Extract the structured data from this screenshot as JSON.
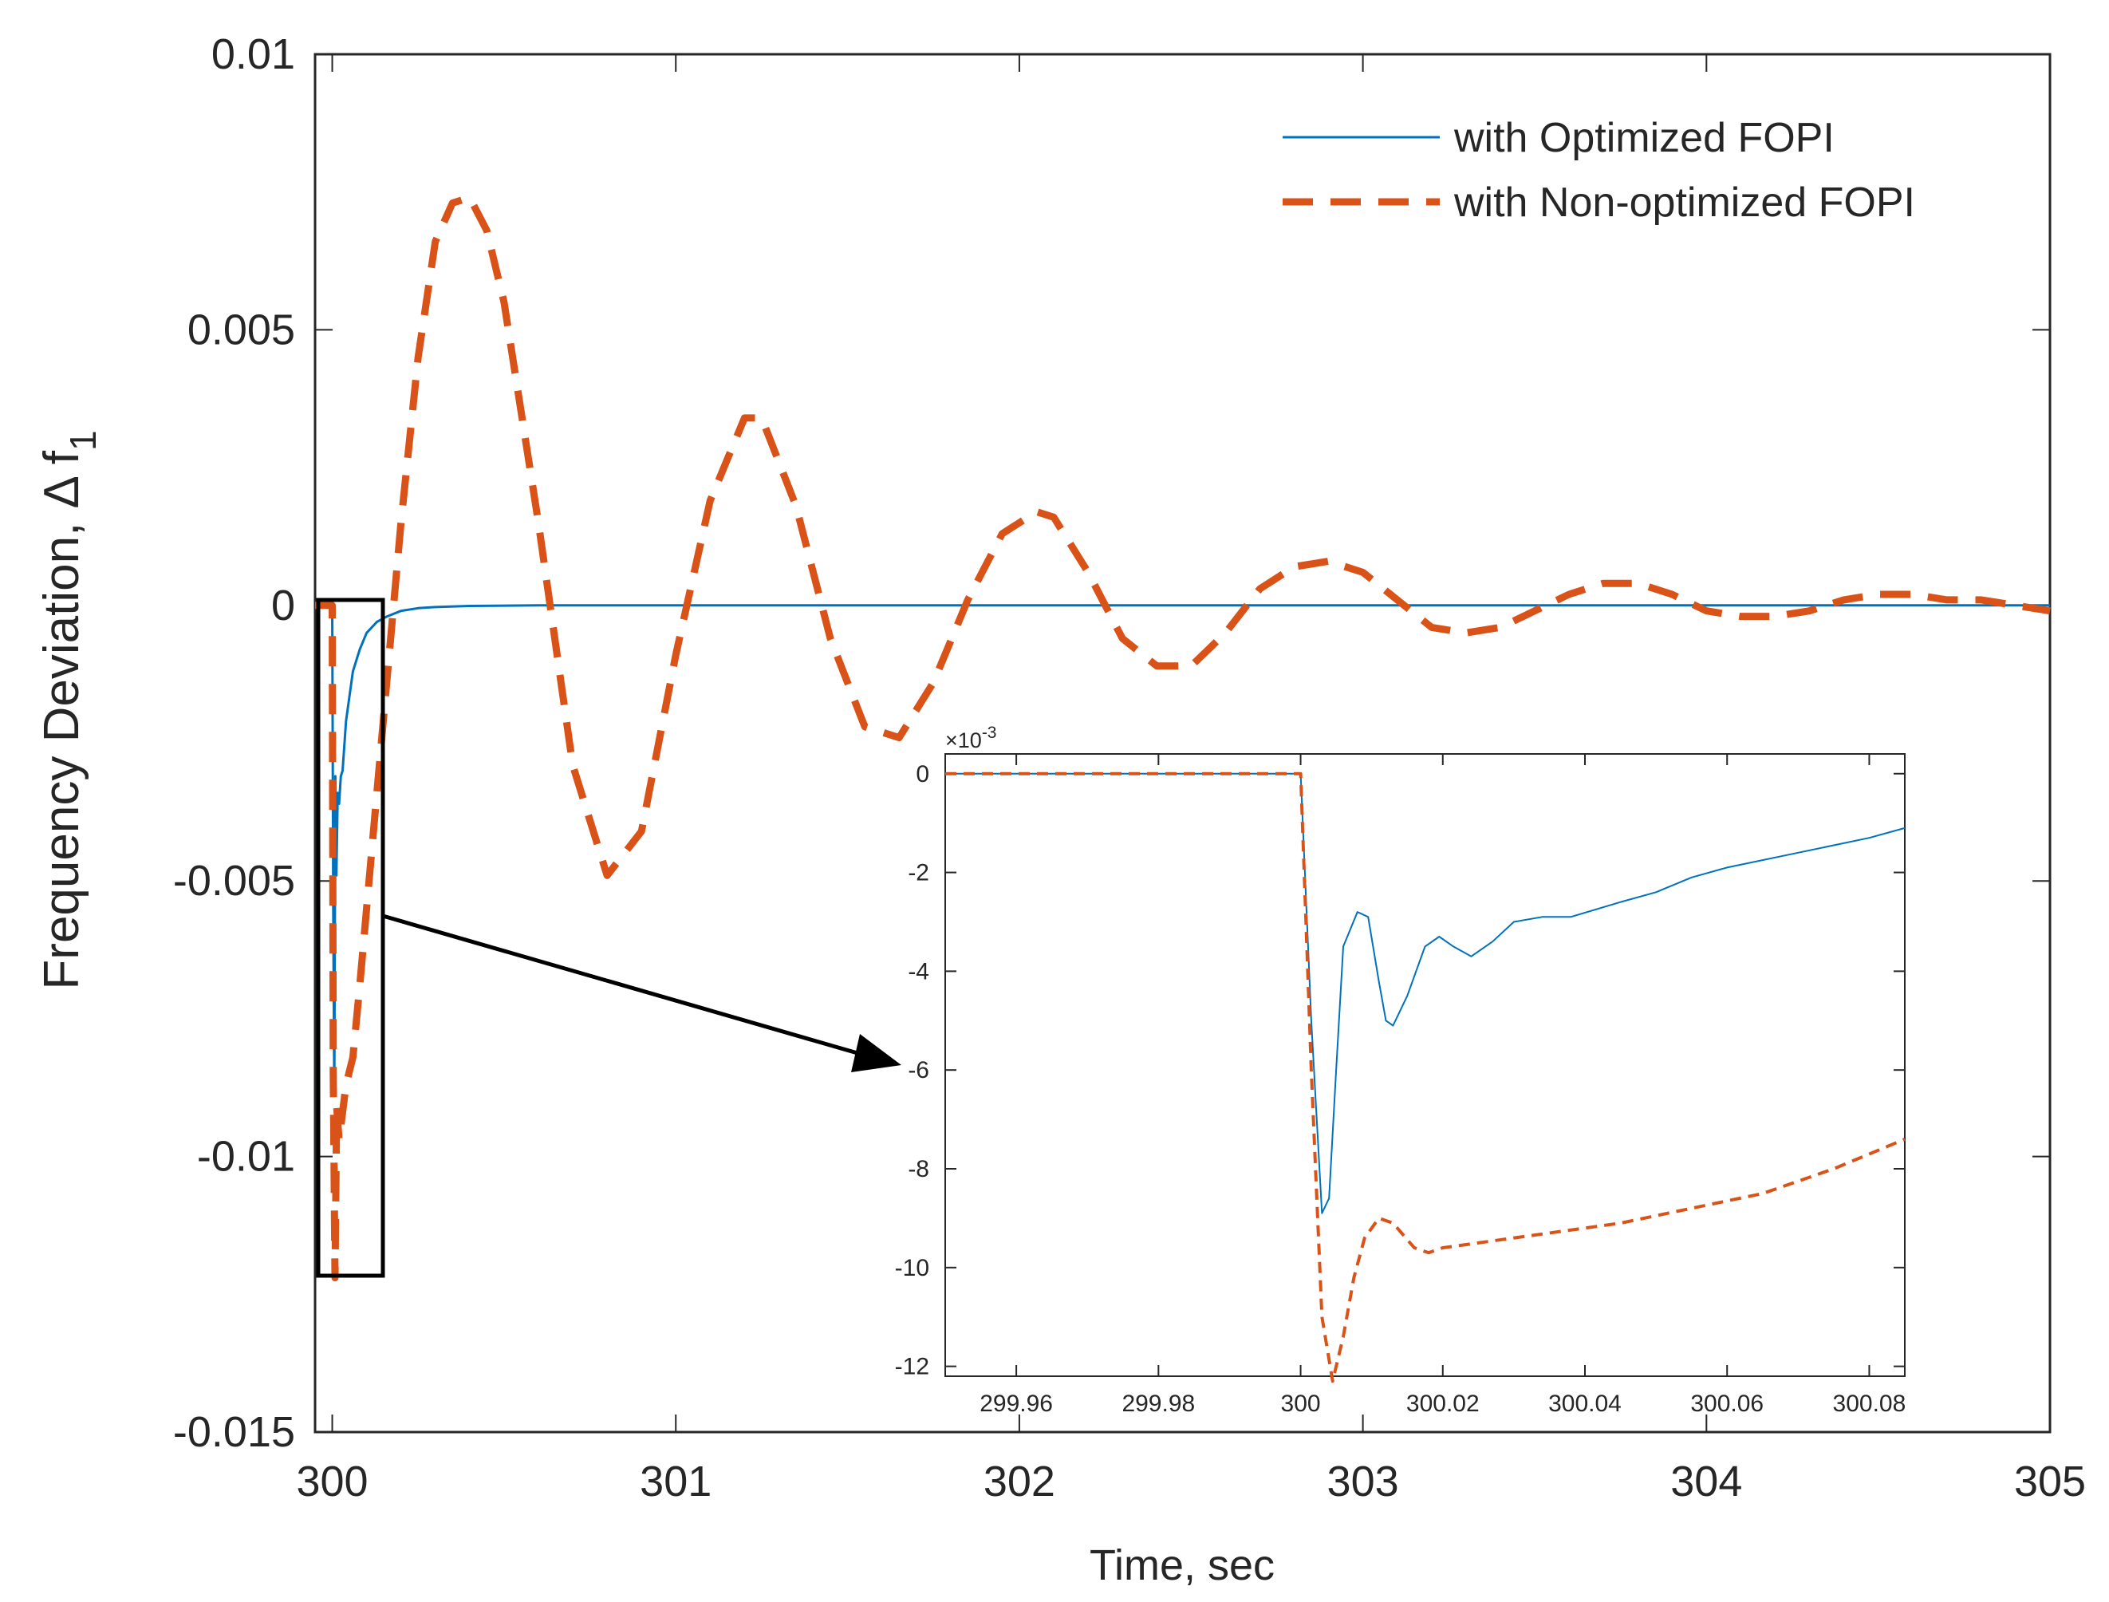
{
  "chart_data": [
    {
      "type": "line",
      "title": "",
      "xlabel": "Time, sec",
      "ylabel": "Frequency Deviation, Δ f",
      "ylabel_subscript": "1",
      "xlim": [
        299.95,
        305
      ],
      "ylim": [
        -0.015,
        0.01
      ],
      "xticks": [
        300,
        301,
        302,
        303,
        304,
        305
      ],
      "xtick_labels": [
        "300",
        "301",
        "302",
        "303",
        "304",
        "305"
      ],
      "yticks": [
        -0.015,
        -0.01,
        -0.005,
        0,
        0.005,
        0.01
      ],
      "ytick_labels": [
        "-0.015",
        "-0.01",
        "-0.005",
        "0",
        "0.005",
        "0.01"
      ],
      "legend_position": "top-right",
      "colors": {
        "optimized": "#0072BD",
        "non_optimized": "#D95319",
        "axes": "#262626"
      },
      "series": [
        {
          "name": "with Optimized FOPI",
          "style": "solid",
          "x": [
            299.95,
            300,
            300.003,
            300.006,
            300.009,
            300.012,
            300.016,
            300.02,
            300.025,
            300.03,
            300.04,
            300.06,
            300.08,
            300.1,
            300.13,
            300.16,
            300.2,
            300.25,
            300.3,
            300.4,
            300.6,
            301,
            302,
            303,
            304,
            305
          ],
          "y": [
            0,
            0,
            -0.0055,
            -0.0089,
            -0.0031,
            -0.0049,
            -0.0034,
            -0.0036,
            -0.0031,
            -0.003,
            -0.0021,
            -0.0012,
            -0.0008,
            -0.0005,
            -0.0003,
            -0.0002,
            -0.0001,
            -5e-05,
            -3e-05,
            -1e-05,
            0,
            0,
            0,
            0,
            0,
            0
          ]
        },
        {
          "name": "with Non-optimized FOPI",
          "style": "dashed",
          "x": [
            299.95,
            300,
            300.003,
            300.008,
            300.013,
            300.02,
            300.04,
            300.06,
            300.08,
            300.1,
            300.15,
            300.2,
            300.25,
            300.3,
            300.35,
            300.4,
            300.45,
            300.5,
            300.6,
            300.7,
            300.8,
            300.9,
            301.0,
            301.1,
            301.2,
            301.25,
            301.35,
            301.45,
            301.55,
            301.65,
            301.75,
            301.85,
            301.95,
            302.05,
            302.1,
            302.2,
            302.3,
            302.4,
            302.5,
            302.6,
            302.7,
            302.8,
            302.9,
            303.0,
            303.1,
            303.2,
            303.3,
            303.4,
            303.5,
            303.6,
            303.7,
            303.8,
            303.9,
            304.0,
            304.1,
            304.2,
            304.3,
            304.4,
            304.5,
            304.6,
            304.7,
            304.8,
            304.9,
            305.0
          ],
          "y": [
            0,
            0,
            -0.0085,
            -0.0122,
            -0.0091,
            -0.0097,
            -0.0087,
            -0.0082,
            -0.0069,
            -0.0055,
            -0.002,
            0.0015,
            0.0045,
            0.0066,
            0.0073,
            0.0074,
            0.0068,
            0.0055,
            0.0015,
            -0.0029,
            -0.0049,
            -0.0041,
            -0.0009,
            0.0019,
            0.0034,
            0.0034,
            0.0018,
            -0.0006,
            -0.0022,
            -0.0024,
            -0.0014,
            0.0001,
            0.0013,
            0.0017,
            0.0016,
            0.0006,
            -0.0006,
            -0.0011,
            -0.0011,
            -0.0005,
            0.0003,
            0.0007,
            0.0008,
            0.0006,
            0.0001,
            -0.0004,
            -0.0005,
            -0.0004,
            -0.0001,
            0.0002,
            0.0004,
            0.0004,
            0.0002,
            -0.0001,
            -0.0002,
            -0.0002,
            -0.0001,
            0.0001,
            0.0002,
            0.0002,
            0.0001,
            0.0001,
            0,
            -0.0001
          ]
        }
      ],
      "annotations": [
        "zoom box around t = 300 s with arrow to inset"
      ]
    },
    {
      "type": "line",
      "title": "",
      "role": "inset",
      "exponent_label": "×10",
      "exponent_power": "-3",
      "xlim": [
        299.95,
        300.085
      ],
      "ylim": [
        -12.2,
        0.4
      ],
      "xticks": [
        299.96,
        299.98,
        300,
        300.02,
        300.04,
        300.06,
        300.08
      ],
      "xtick_labels": [
        "299.96",
        "299.98",
        "300",
        "300.02",
        "300.04",
        "300.06",
        "300.08"
      ],
      "yticks": [
        0,
        -2,
        -4,
        -6,
        -8,
        -10,
        -12
      ],
      "ytick_labels": [
        "0",
        "-2",
        "-4",
        "-6",
        "-8",
        "-10",
        "-12"
      ],
      "series": [
        {
          "name": "with Optimized FOPI",
          "style": "solid",
          "x": [
            299.95,
            300,
            300.0015,
            300.003,
            300.004,
            300.005,
            300.006,
            300.008,
            300.0095,
            300.011,
            300.012,
            300.013,
            300.015,
            300.0175,
            300.0195,
            300.0215,
            300.024,
            300.027,
            300.03,
            300.034,
            300.038,
            300.045,
            300.05,
            300.055,
            300.06,
            300.07,
            300.08,
            300.085
          ],
          "y": [
            0,
            0,
            -5.0,
            -8.9,
            -8.6,
            -6.0,
            -3.5,
            -2.8,
            -2.9,
            -4.2,
            -5.0,
            -5.1,
            -4.5,
            -3.5,
            -3.3,
            -3.5,
            -3.7,
            -3.4,
            -3.0,
            -2.9,
            -2.9,
            -2.6,
            -2.4,
            -2.1,
            -1.9,
            -1.6,
            -1.3,
            -1.1
          ]
        },
        {
          "name": "with Non-optimized FOPI",
          "style": "dashed",
          "x": [
            299.95,
            300,
            300.0015,
            300.003,
            300.0045,
            300.006,
            300.0075,
            300.009,
            300.011,
            300.013,
            300.016,
            300.018,
            300.02,
            300.025,
            300.035,
            300.045,
            300.055,
            300.065,
            300.075,
            300.085
          ],
          "y": [
            0,
            0,
            -6.0,
            -11.0,
            -12.3,
            -11.4,
            -10.2,
            -9.4,
            -9.0,
            -9.1,
            -9.6,
            -9.7,
            -9.6,
            -9.5,
            -9.3,
            -9.1,
            -8.8,
            -8.5,
            -8.0,
            -7.4
          ]
        }
      ]
    }
  ]
}
